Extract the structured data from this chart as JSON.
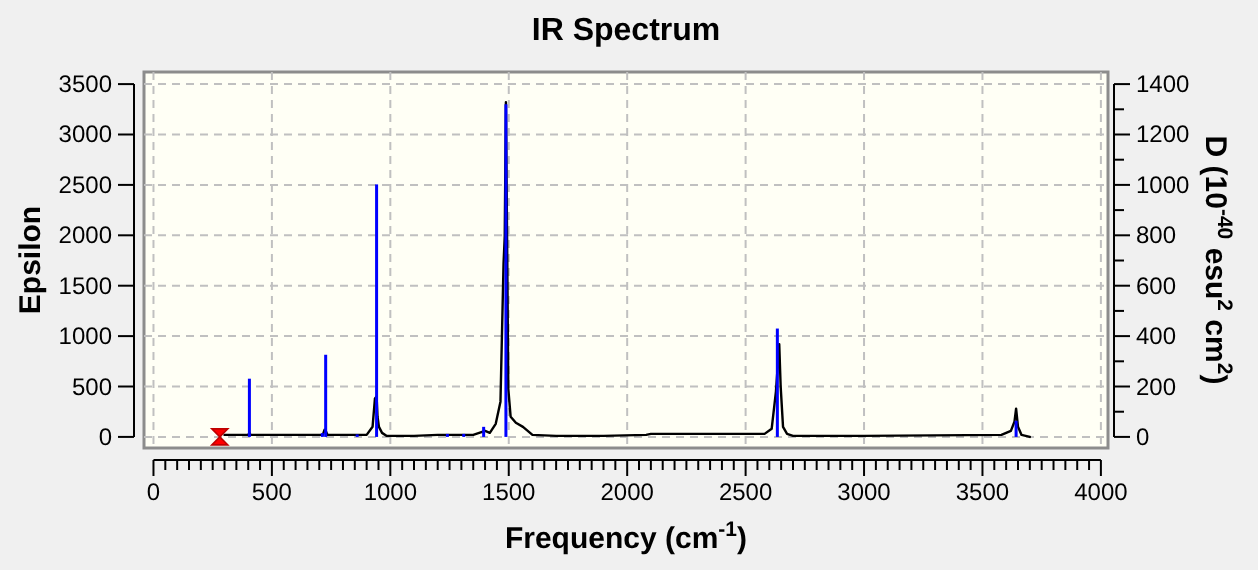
{
  "chart_data": {
    "type": "line",
    "title": "IR Spectrum",
    "xlabel": "Frequency (cm$^{-1}$)",
    "ylabel": "Epsilon",
    "y2label": "D (10$^{-40}$ esu$^{2}$ cm$^{2}$)",
    "xlim": [
      -40,
      4030
    ],
    "ylim": [
      -110,
      3620
    ],
    "y2lim": [
      -44,
      1448
    ],
    "xticks": [
      0,
      {
        "value": 50,
        "label": null
      },
      {
        "value": 100,
        "label": null
      },
      {
        "value": 150,
        "label": null
      },
      {
        "value": 200,
        "label": null
      },
      {
        "value": 250,
        "label": null
      },
      {
        "value": 300,
        "label": null
      },
      {
        "value": 350,
        "label": null
      },
      {
        "value": 400,
        "label": null
      },
      {
        "value": 450,
        "label": null
      },
      500,
      {
        "value": 550,
        "label": null
      },
      {
        "value": 600,
        "label": null
      },
      {
        "value": 650,
        "label": null
      },
      {
        "value": 700,
        "label": null
      },
      {
        "value": 750,
        "label": null
      },
      {
        "value": 800,
        "label": null
      },
      {
        "value": 850,
        "label": null
      },
      {
        "value": 900,
        "label": null
      },
      {
        "value": 950,
        "label": null
      },
      1000,
      {
        "value": 1050,
        "label": null
      },
      {
        "value": 1100,
        "label": null
      },
      {
        "value": 1150,
        "label": null
      },
      {
        "value": 1200,
        "label": null
      },
      {
        "value": 1250,
        "label": null
      },
      {
        "value": 1300,
        "label": null
      },
      {
        "value": 1350,
        "label": null
      },
      {
        "value": 1400,
        "label": null
      },
      {
        "value": 1450,
        "label": null
      },
      1500,
      {
        "value": 1550,
        "label": null
      },
      {
        "value": 1600,
        "label": null
      },
      {
        "value": 1650,
        "label": null
      },
      {
        "value": 1700,
        "label": null
      },
      {
        "value": 1750,
        "label": null
      },
      {
        "value": 1800,
        "label": null
      },
      {
        "value": 1850,
        "label": null
      },
      {
        "value": 1900,
        "label": null
      },
      {
        "value": 1950,
        "label": null
      },
      2000,
      {
        "value": 2050,
        "label": null
      },
      {
        "value": 2100,
        "label": null
      },
      {
        "value": 2150,
        "label": null
      },
      {
        "value": 2200,
        "label": null
      },
      {
        "value": 2250,
        "label": null
      },
      {
        "value": 2300,
        "label": null
      },
      {
        "value": 2350,
        "label": null
      },
      {
        "value": 2400,
        "label": null
      },
      {
        "value": 2450,
        "label": null
      },
      2500,
      {
        "value": 2550,
        "label": null
      },
      {
        "value": 2600,
        "label": null
      },
      {
        "value": 2650,
        "label": null
      },
      {
        "value": 2700,
        "label": null
      },
      {
        "value": 2750,
        "label": null
      },
      {
        "value": 2800,
        "label": null
      },
      {
        "value": 2850,
        "label": null
      },
      {
        "value": 2900,
        "label": null
      },
      {
        "value": 2950,
        "label": null
      },
      3000,
      {
        "value": 3050,
        "label": null
      },
      {
        "value": 3100,
        "label": null
      },
      {
        "value": 3150,
        "label": null
      },
      {
        "value": 3200,
        "label": null
      },
      {
        "value": 3250,
        "label": null
      },
      {
        "value": 3300,
        "label": null
      },
      {
        "value": 3350,
        "label": null
      },
      {
        "value": 3400,
        "label": null
      },
      {
        "value": 3450,
        "label": null
      },
      3500,
      {
        "value": 3550,
        "label": null
      },
      {
        "value": 3600,
        "label": null
      },
      {
        "value": 3650,
        "label": null
      },
      {
        "value": 3700,
        "label": null
      },
      {
        "value": 3750,
        "label": null
      },
      {
        "value": 3800,
        "label": null
      },
      {
        "value": 3850,
        "label": null
      },
      {
        "value": 3900,
        "label": null
      },
      {
        "value": 3950,
        "label": null
      },
      4000
    ],
    "yticks": [
      0,
      500,
      1000,
      1500,
      2000,
      2500,
      3000,
      3500
    ],
    "y2ticks": [
      0,
      {
        "value": 100,
        "label": null
      },
      200,
      {
        "value": 300,
        "label": null
      },
      400,
      {
        "value": 500,
        "label": null
      },
      600,
      {
        "value": 700,
        "label": null
      },
      800,
      {
        "value": 900,
        "label": null
      },
      1000,
      {
        "value": 1100,
        "label": null
      },
      1200,
      {
        "value": 1300,
        "label": null
      },
      1400
    ],
    "grid": true,
    "series": [
      {
        "color": "#000000",
        "x": [
          300,
          400,
          405,
          410,
          500,
          540,
          560,
          650,
          715,
          722,
          727,
          735,
          800,
          900,
          925,
          935,
          942,
          946,
          952,
          965,
          985,
          1100,
          1200,
          1350,
          1400,
          1420,
          1445,
          1465,
          1478,
          1483,
          1488,
          1493,
          1498,
          1508,
          1530,
          1560,
          1600,
          1700,
          1900,
          2080,
          2100,
          2400,
          2580,
          2610,
          2628,
          2642,
          2648,
          2658,
          2675,
          2700,
          3000,
          3580,
          3620,
          3635,
          3642,
          3650,
          3665,
          3700
        ],
        "values": [
          20,
          20,
          40,
          20,
          20,
          20,
          20,
          20,
          20,
          70,
          60,
          20,
          20,
          20,
          100,
          380,
          400,
          200,
          100,
          40,
          10,
          10,
          20,
          20,
          60,
          40,
          130,
          350,
          1720,
          1990,
          3320,
          1960,
          480,
          200,
          140,
          100,
          20,
          10,
          10,
          20,
          30,
          30,
          30,
          80,
          450,
          920,
          500,
          100,
          30,
          10,
          10,
          20,
          60,
          150,
          280,
          100,
          20,
          0
        ]
      },
      {
        "type": "bar",
        "axis": "y2",
        "color": "#0000ff",
        "x": [
          405,
          713,
          727,
          860,
          942,
          1241,
          1310,
          1394,
          1488,
          2634,
          3642
        ],
        "values": [
          231,
          15,
          326,
          10,
          1002,
          12,
          12,
          40,
          1320,
          430,
          64
        ]
      }
    ]
  }
}
